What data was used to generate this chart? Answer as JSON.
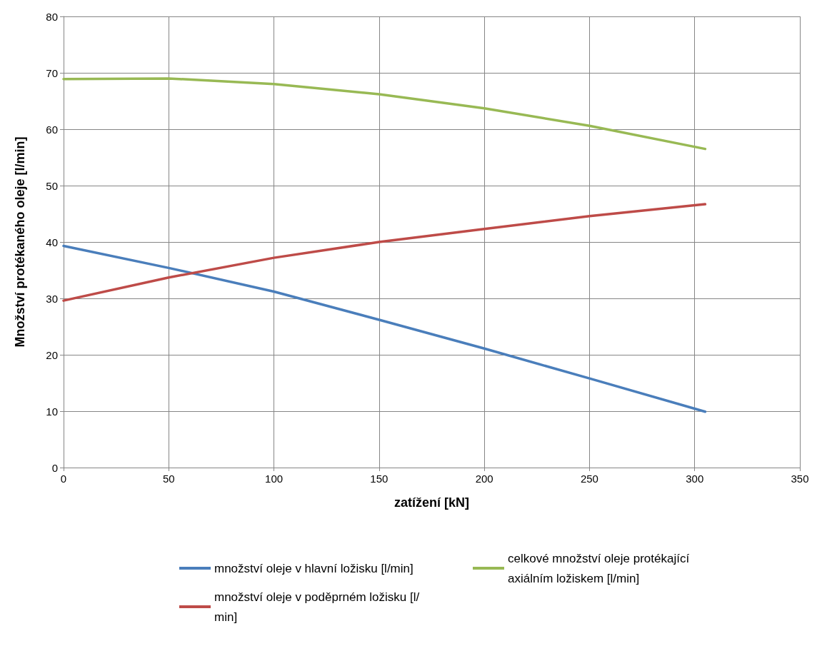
{
  "chart_data": {
    "type": "line",
    "xlabel": "zatížení [kN]",
    "ylabel": "Množství protékaného oleje [l/min]",
    "xlim": [
      0,
      350
    ],
    "xticks": [
      0,
      50,
      100,
      150,
      200,
      250,
      300,
      350
    ],
    "ylim": [
      0,
      80
    ],
    "yticks": [
      0,
      10,
      20,
      30,
      40,
      50,
      60,
      70,
      80
    ],
    "grid": true,
    "legend": "bottom",
    "marker": "none",
    "line_style": "solid",
    "x": [
      0,
      50,
      100,
      150,
      200,
      250,
      305
    ],
    "series": [
      {
        "name": "množství oleje v hlavní ložisku [l/min]",
        "color": "#4a7ebb",
        "values": [
          39.3,
          35.4,
          31.2,
          26.2,
          21.1,
          15.8,
          9.9
        ]
      },
      {
        "name": "množství oleje v poděprném ložisku [l/min]",
        "color": "#be4b48",
        "values": [
          29.6,
          33.7,
          37.2,
          40.0,
          42.3,
          44.6,
          46.7
        ]
      },
      {
        "name": "celkové množství oleje protékající axiálním ložiskem [l/min]",
        "color": "#98b954",
        "values": [
          68.9,
          69.0,
          68.0,
          66.2,
          63.7,
          60.6,
          56.5
        ]
      }
    ]
  }
}
